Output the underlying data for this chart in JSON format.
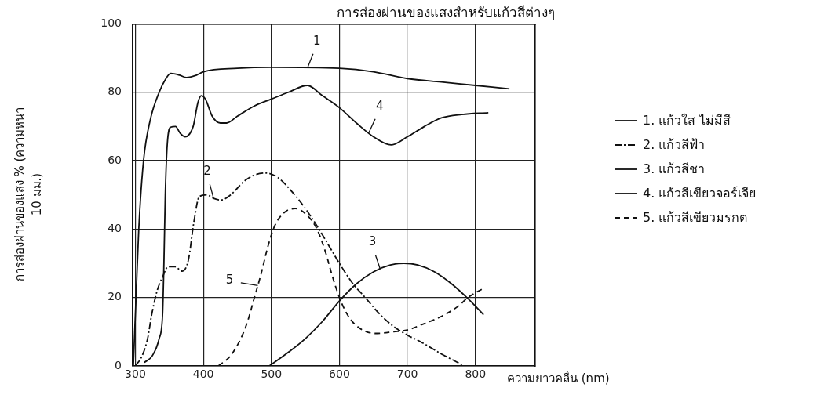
{
  "chart_data": {
    "type": "line",
    "title": "การส่องผ่านของแสงสำหรับแก้วสีต่างๆ",
    "xlabel": "ความยาวคลื่น (nm)",
    "ylabel": "การส่องผ่านของแสง % (ความหนา 10 มม.)",
    "xlim": [
      296,
      888
    ],
    "xticks": [
      300,
      400,
      500,
      600,
      700,
      800
    ],
    "ylim": [
      0,
      100
    ],
    "yticks": [
      0,
      20,
      40,
      60,
      80,
      100
    ],
    "grid": true,
    "legend": "right",
    "marker": "none",
    "series": [
      {
        "name": "1. แก้วใส ไม่มีสี",
        "color": "#111111",
        "line_style": "solid",
        "x": [
          297,
          301,
          305,
          312,
          322,
          335,
          345,
          352,
          365,
          375,
          390,
          400,
          450,
          500,
          600,
          650,
          700,
          750,
          800,
          850
        ],
        "values": [
          0,
          20,
          40,
          60,
          72,
          80,
          84,
          85.5,
          85,
          84.3,
          85,
          86,
          87,
          87.3,
          87,
          86,
          84,
          83,
          82,
          81
        ]
      },
      {
        "name": "2. แก้วสีฟ้า",
        "color": "#111111",
        "line_style": "dashdot",
        "x": [
          300,
          310,
          318,
          324,
          332,
          340,
          348,
          358,
          369,
          378,
          386,
          394,
          405,
          415,
          426,
          440,
          460,
          475,
          492,
          510,
          530,
          550,
          570,
          585,
          600,
          620,
          638,
          660,
          680,
          700,
          720,
          750,
          784
        ],
        "values": [
          0,
          3,
          8,
          15,
          22,
          26,
          29,
          29,
          27.7,
          31,
          42,
          49.5,
          50,
          49,
          48.5,
          50,
          54,
          55.8,
          56.4,
          55,
          51,
          46,
          40,
          35,
          30,
          24,
          20,
          15,
          11.5,
          9,
          7,
          3.5,
          0
        ]
      },
      {
        "name": "3. แก้วสีชา",
        "color": "#111111",
        "line_style": "solid",
        "x": [
          497,
          525,
          550,
          575,
          600,
          625,
          650,
          675,
          695,
          715,
          740,
          765,
          790,
          812
        ],
        "values": [
          0,
          4,
          8,
          13,
          19,
          24,
          27.5,
          29.5,
          30,
          29.5,
          27.5,
          24,
          19.5,
          15
        ]
      },
      {
        "name": "4. แก้วสีเขียวจอร์เจีย",
        "color": "#111111",
        "line_style": "solid",
        "x": [
          313,
          325,
          335,
          340,
          342,
          344,
          347,
          352,
          359,
          366,
          373,
          385,
          392,
          397,
          403,
          413,
          425,
          434,
          450,
          475,
          500,
          525,
          553,
          575,
          600,
          625,
          650,
          676,
          700,
          725,
          750,
          780,
          819
        ],
        "values": [
          1,
          3,
          8,
          15,
          30,
          50,
          65,
          69.8,
          70,
          68,
          67,
          70,
          77,
          79,
          78,
          73,
          71,
          71,
          73,
          76,
          78,
          80,
          82,
          79,
          75.5,
          71,
          67,
          64.6,
          67,
          70,
          72.5,
          73.5,
          74
        ]
      },
      {
        "name": "5. แก้วสีเขียวมรกต",
        "color": "#111111",
        "line_style": "dashed",
        "x": [
          422,
          440,
          455,
          465,
          475,
          485,
          495,
          505,
          520,
          535,
          550,
          567,
          580,
          590,
          602,
          615,
          630,
          653,
          680,
          700,
          720,
          750,
          775,
          789,
          812
        ],
        "values": [
          0,
          3,
          8,
          13,
          20,
          27,
          35,
          41,
          45,
          46,
          44.5,
          40,
          33,
          26,
          19,
          14,
          11,
          9.5,
          10,
          10.5,
          12,
          14.5,
          17.5,
          20,
          22.7
        ]
      }
    ],
    "annotations": [
      {
        "text": "1",
        "x": 553,
        "y": 87.1
      },
      {
        "text": "2",
        "x": 415,
        "y": 49
      },
      {
        "text": "3",
        "x": 660,
        "y": 28.3
      },
      {
        "text": "4",
        "x": 643,
        "y": 68.1
      },
      {
        "text": "5",
        "x": 480,
        "y": 23.5
      }
    ]
  }
}
